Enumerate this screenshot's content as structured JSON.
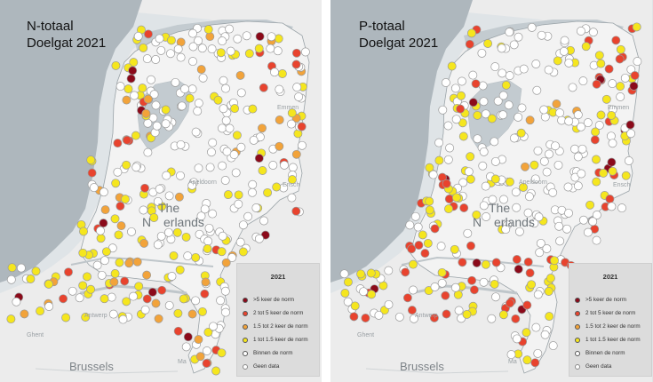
{
  "panels": [
    {
      "id": "n-totaal",
      "title_line1": "N-totaal",
      "title_line2": "Doelgat 2021",
      "legend_title": "2021"
    },
    {
      "id": "p-totaal",
      "title_line1": "P-totaal",
      "title_line2": "Doelgat 2021",
      "legend_title": "2021"
    }
  ],
  "legend_items": [
    {
      "label": ">5 keer de norm",
      "color": "#8b0a1a",
      "icon": "dark-red-dot"
    },
    {
      "label": "2 tot 5 keer de norm",
      "color": "#e8432e",
      "icon": "red-dot"
    },
    {
      "label": "1.5 tot 2 keer de norm",
      "color": "#f2a33a",
      "icon": "orange-dot"
    },
    {
      "label": "1 tot 1.5 keer de norm",
      "color": "#f5e61e",
      "icon": "yellow-dot"
    },
    {
      "label": "Binnen de norm",
      "color": "#ffffff",
      "icon": "white-dot"
    },
    {
      "label": "Geen data",
      "color": "#ffffff",
      "icon": "grey-ring-dot"
    }
  ],
  "places": {
    "country": "The Netherlands",
    "country_part1": "The",
    "country_part2": "N",
    "country_part3": "erlands",
    "apeldoorn": "Apeldoorn",
    "antwerp": "Antwerp",
    "ghent": "Ghent",
    "brussels": "Brussels",
    "emmen": "Emmen",
    "enschede": "Ensch",
    "maastricht": "Ma"
  },
  "colors": {
    "sea": "#aeb7bd",
    "land": "#f3f3f3",
    "water_outline": "#b8c0c5",
    "dark_red": "#8b0a1a",
    "red": "#e8432e",
    "orange": "#f2a33a",
    "yellow": "#f5e61e",
    "white": "#ffffff"
  }
}
